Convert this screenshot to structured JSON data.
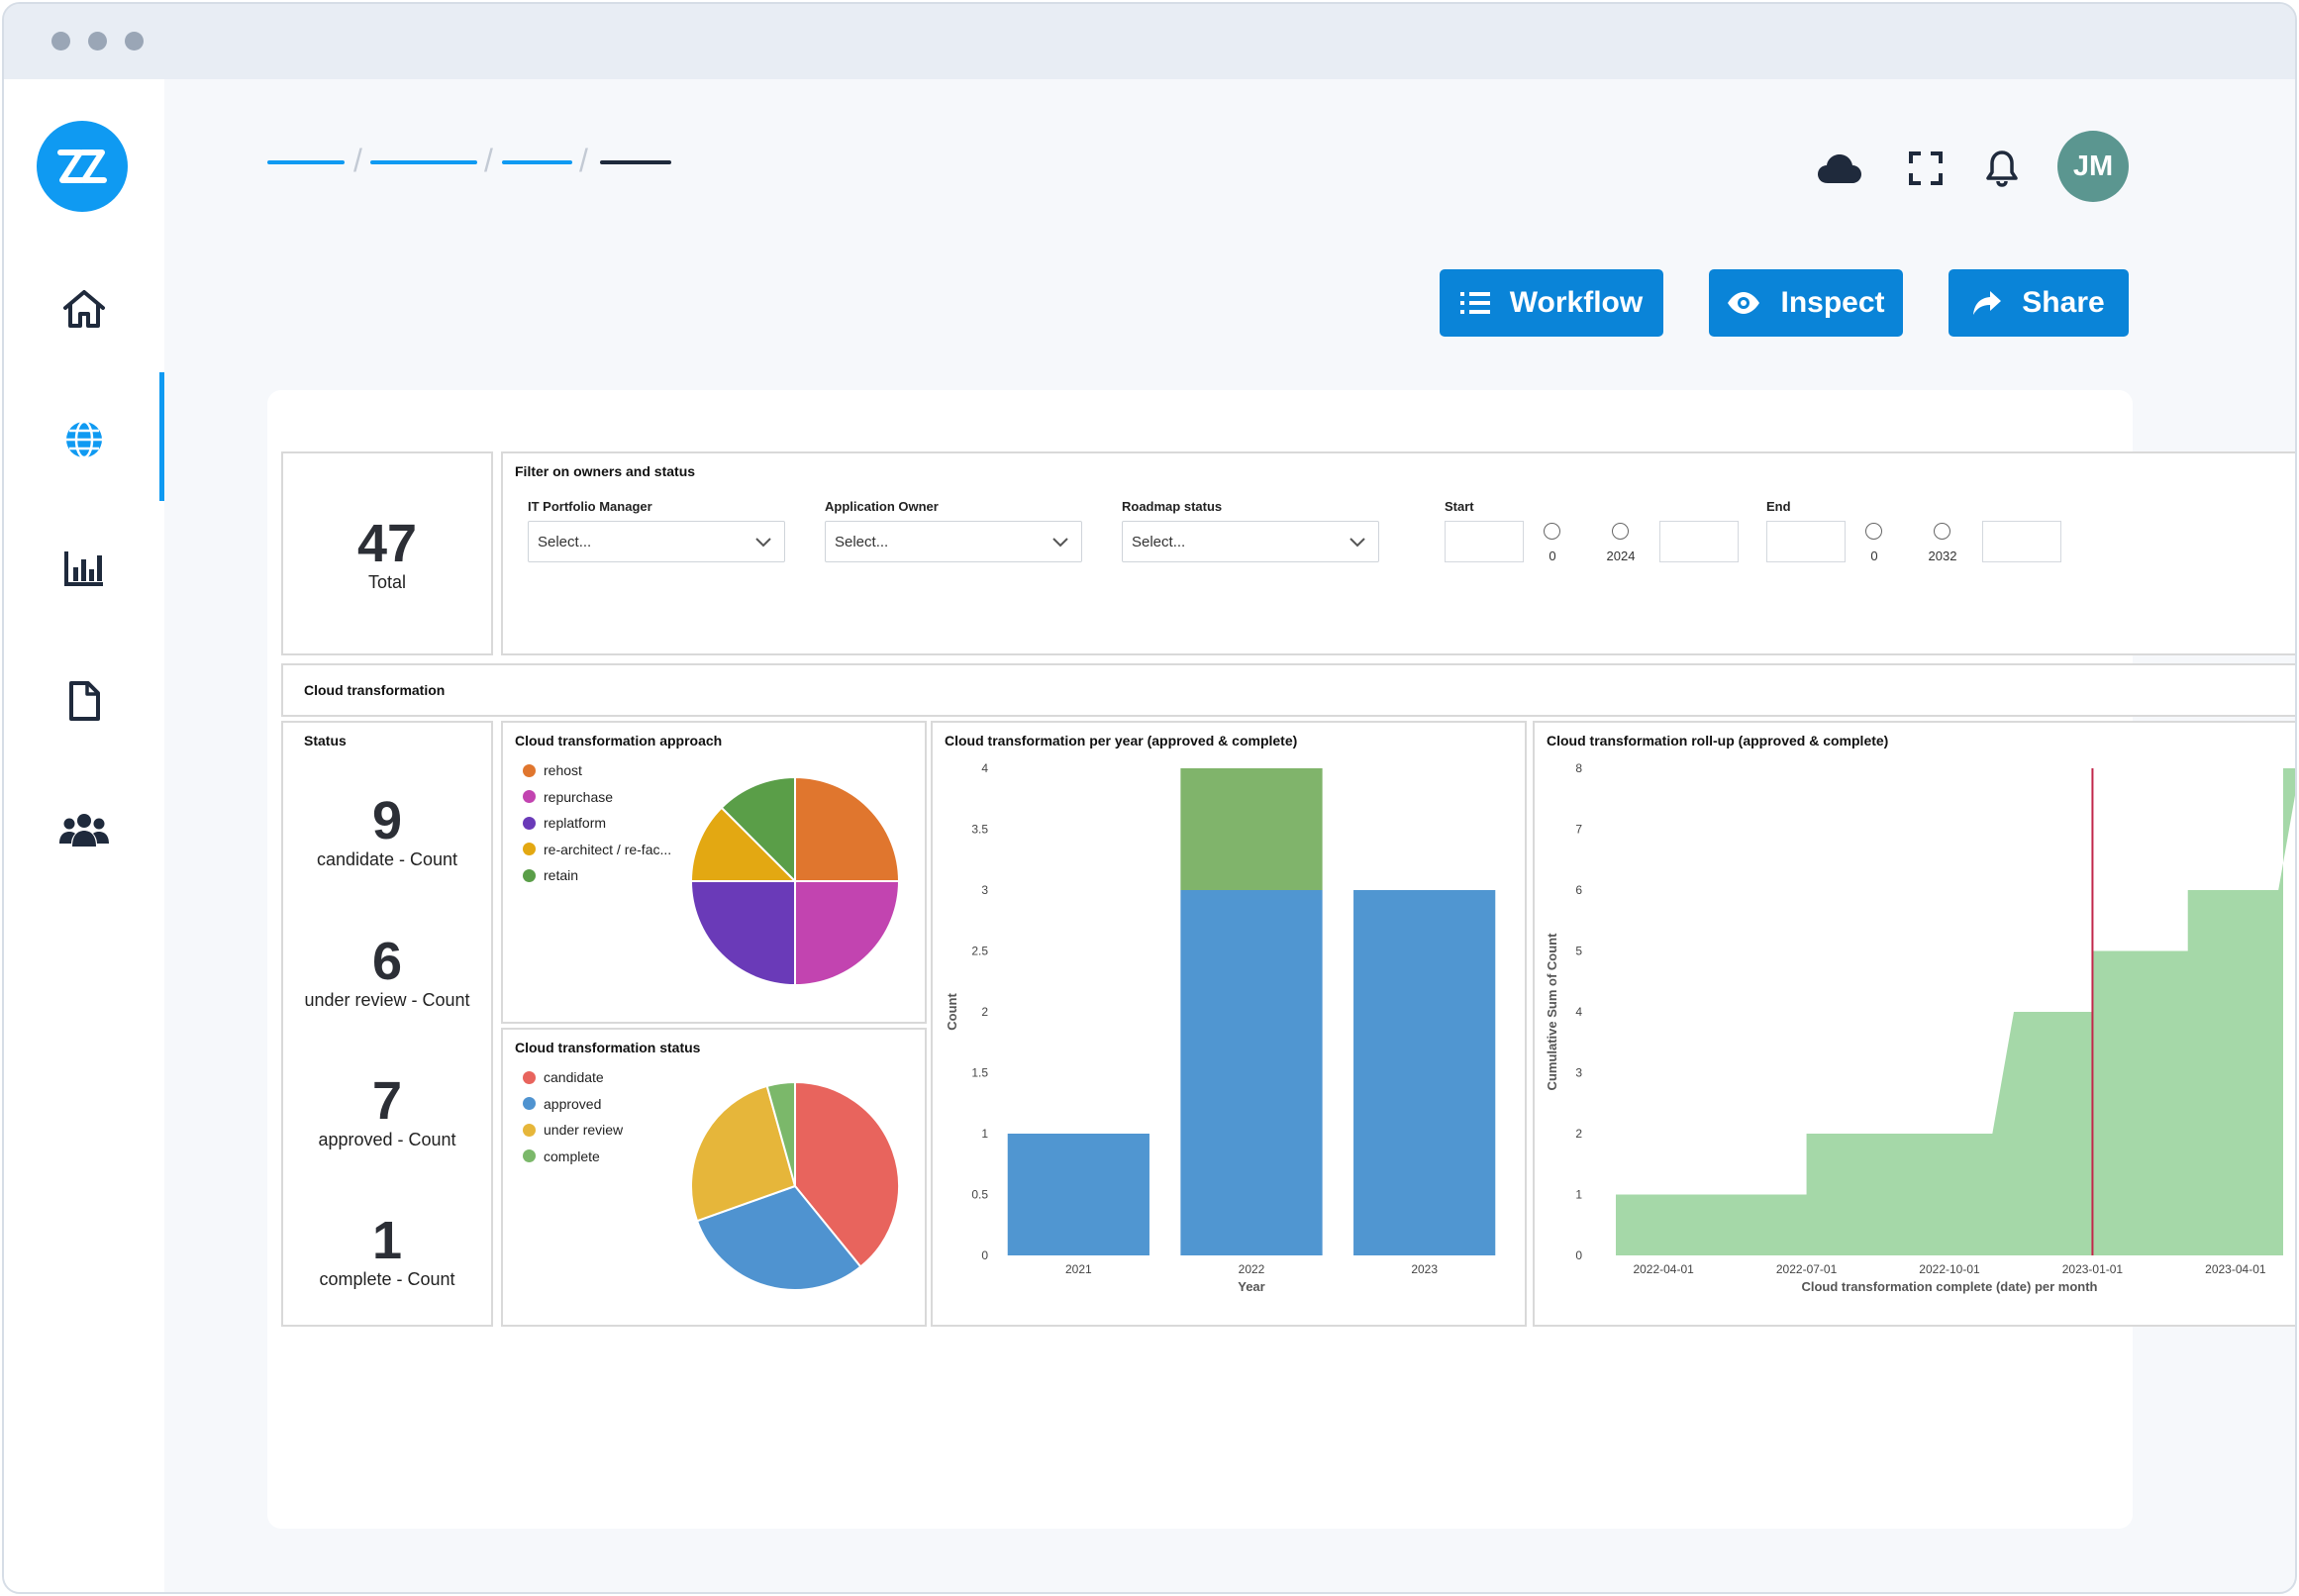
{
  "window": {
    "buttons": [
      "close",
      "minimize",
      "maximize"
    ]
  },
  "sidebar": {
    "logo_icon": "zz-logo-icon",
    "items": [
      {
        "name": "home",
        "icon": "home-icon",
        "active": false
      },
      {
        "name": "globe",
        "icon": "globe-icon",
        "active": true
      },
      {
        "name": "reports",
        "icon": "bar-chart-icon",
        "active": false
      },
      {
        "name": "documents",
        "icon": "document-icon",
        "active": false
      },
      {
        "name": "users",
        "icon": "users-icon",
        "active": false
      }
    ]
  },
  "header": {
    "breadcrumb_colors": [
      "#0f9af2",
      "#0f9af2",
      "#0f9af2",
      "#1f2a3c"
    ],
    "icons": [
      "cloud-icon",
      "fullscreen-icon",
      "bell-icon"
    ],
    "avatar_initials": "JM"
  },
  "toolbar": {
    "workflow_label": "Workflow",
    "inspect_label": "Inspect",
    "share_label": "Share"
  },
  "colors": {
    "accent": "#0a84d8",
    "brand": "#0f9af2"
  },
  "total": {
    "value": "47",
    "label": "Total"
  },
  "filter": {
    "title": "Filter on owners and status",
    "it_portfolio_manager": {
      "label": "IT Portfolio Manager",
      "value": "Select..."
    },
    "application_owner": {
      "label": "Application Owner",
      "value": "Select..."
    },
    "roadmap_status": {
      "label": "Roadmap status",
      "value": "Select..."
    },
    "start": {
      "label": "Start",
      "min": "0",
      "max": "2024"
    },
    "end": {
      "label": "End",
      "min": "0",
      "max": "2032"
    }
  },
  "section": {
    "title": "Cloud transformation"
  },
  "status": {
    "title": "Status",
    "items": [
      {
        "value": "9",
        "label": "candidate - Count"
      },
      {
        "value": "6",
        "label": "under review - Count"
      },
      {
        "value": "7",
        "label": "approved - Count"
      },
      {
        "value": "1",
        "label": "complete - Count"
      }
    ]
  },
  "approach": {
    "title": "Cloud transformation approach"
  },
  "status_pie": {
    "title": "Cloud transformation status"
  },
  "per_year": {
    "title": "Cloud transformation per year (approved & complete)"
  },
  "rollup": {
    "title": "Cloud transformation roll-up (approved & complete)"
  },
  "chart_data": [
    {
      "type": "pie",
      "title": "Cloud transformation approach",
      "labels": [
        "rehost",
        "repurchase",
        "replatform",
        "re-architect / re-fac...",
        "retain"
      ],
      "values": [
        25,
        25,
        25,
        12.5,
        12.5
      ],
      "colors": [
        "#e0762e",
        "#c244b0",
        "#6a3ab8",
        "#e3a812",
        "#5a9e48"
      ]
    },
    {
      "type": "pie",
      "title": "Cloud transformation status",
      "labels": [
        "candidate",
        "approved",
        "under review",
        "complete"
      ],
      "values": [
        9,
        7,
        6,
        1
      ],
      "colors": [
        "#e8645d",
        "#4f93d0",
        "#e6b63a",
        "#7bb86a"
      ]
    },
    {
      "type": "bar",
      "title": "Cloud transformation per year (approved & complete)",
      "categories": [
        "2021",
        "2022",
        "2023"
      ],
      "series": [
        {
          "values": [
            1,
            3,
            3
          ],
          "color": "#5096d1"
        },
        {
          "values": [
            0,
            1,
            0
          ],
          "color": "#80b46b"
        }
      ],
      "stacked": true,
      "xlabel": "Year",
      "ylabel": "Count",
      "ylim": [
        0,
        4
      ],
      "yticks": [
        "0",
        "0.5",
        "1",
        "1.5",
        "2",
        "2.5",
        "3",
        "3.5",
        "4"
      ]
    },
    {
      "type": "area",
      "title": "Cloud transformation roll-up (approved & complete)",
      "x": [
        "2022-03",
        "2022-04",
        "2022-05",
        "2022-06",
        "2022-07",
        "2022-08",
        "2022-09",
        "2022-10",
        "2022-11",
        "2022-12",
        "2023-01",
        "2023-02",
        "2023-03",
        "2023-04",
        "2023-05"
      ],
      "values": [
        1,
        1,
        1,
        1,
        2,
        2,
        2,
        2,
        4,
        4,
        5,
        5,
        6,
        6,
        8
      ],
      "xticks": [
        "2022-04-01",
        "2022-07-01",
        "2022-10-01",
        "2023-01-01",
        "2023-04-01"
      ],
      "xlabel": "Cloud transformation complete (date) per month",
      "ylabel": "Cumulative Sum of Count",
      "ylim": [
        0,
        8
      ],
      "yticks": [
        "0",
        "1",
        "2",
        "3",
        "4",
        "5",
        "6",
        "7",
        "8"
      ],
      "marker_x": "2023-01",
      "color": "#a5d8a8",
      "marker_color": "#c2274a"
    }
  ]
}
